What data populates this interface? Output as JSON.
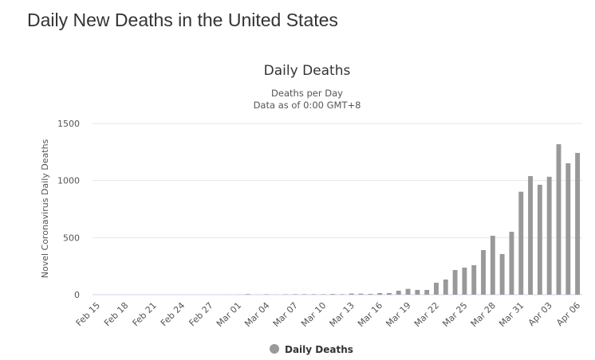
{
  "page_title": "Daily New Deaths in the United States",
  "chart_data": {
    "type": "bar",
    "title": "Daily Deaths",
    "subtitle_line1": "Deaths per Day",
    "subtitle_line2": "Data as of 0:00 GMT+8",
    "ylabel": "Novel Coronavirus Daily Deaths",
    "xlabel": "",
    "ylim": [
      0,
      1500
    ],
    "yticks": [
      "0",
      "500",
      "1000",
      "1500"
    ],
    "ytick_values": [
      0,
      500,
      1000,
      1500
    ],
    "xtick_labels": [
      "Feb 15",
      "Feb 18",
      "Feb 21",
      "Feb 24",
      "Feb 27",
      "Mar 01",
      "Mar 04",
      "Mar 07",
      "Mar 10",
      "Mar 13",
      "Mar 16",
      "Mar 19",
      "Mar 22",
      "Mar 25",
      "Mar 28",
      "Mar 31",
      "Apr 03",
      "Apr 06"
    ],
    "legend": "Daily Deaths",
    "legend_position": "bottom-center",
    "grid": true,
    "bar_color": "#999999",
    "categories": [
      "Feb 15",
      "Feb 16",
      "Feb 17",
      "Feb 18",
      "Feb 19",
      "Feb 20",
      "Feb 21",
      "Feb 22",
      "Feb 23",
      "Feb 24",
      "Feb 25",
      "Feb 26",
      "Feb 27",
      "Feb 28",
      "Feb 29",
      "Mar 01",
      "Mar 02",
      "Mar 03",
      "Mar 04",
      "Mar 05",
      "Mar 06",
      "Mar 07",
      "Mar 08",
      "Mar 09",
      "Mar 10",
      "Mar 11",
      "Mar 12",
      "Mar 13",
      "Mar 14",
      "Mar 15",
      "Mar 16",
      "Mar 17",
      "Mar 18",
      "Mar 19",
      "Mar 20",
      "Mar 21",
      "Mar 22",
      "Mar 23",
      "Mar 24",
      "Mar 25",
      "Mar 26",
      "Mar 27",
      "Mar 28",
      "Mar 29",
      "Mar 30",
      "Mar 31",
      "Apr 01",
      "Apr 02",
      "Apr 03",
      "Apr 04",
      "Apr 05",
      "Apr 06"
    ],
    "values": [
      0,
      0,
      0,
      0,
      0,
      0,
      0,
      0,
      0,
      0,
      0,
      0,
      0,
      0,
      1,
      1,
      5,
      1,
      4,
      1,
      3,
      4,
      4,
      4,
      4,
      6,
      4,
      10,
      9,
      7,
      14,
      14,
      35,
      51,
      42,
      42,
      105,
      133,
      216,
      237,
      258,
      391,
      516,
      356,
      551,
      902,
      1039,
      963,
      1033,
      1318,
      1151,
      1242
    ]
  }
}
